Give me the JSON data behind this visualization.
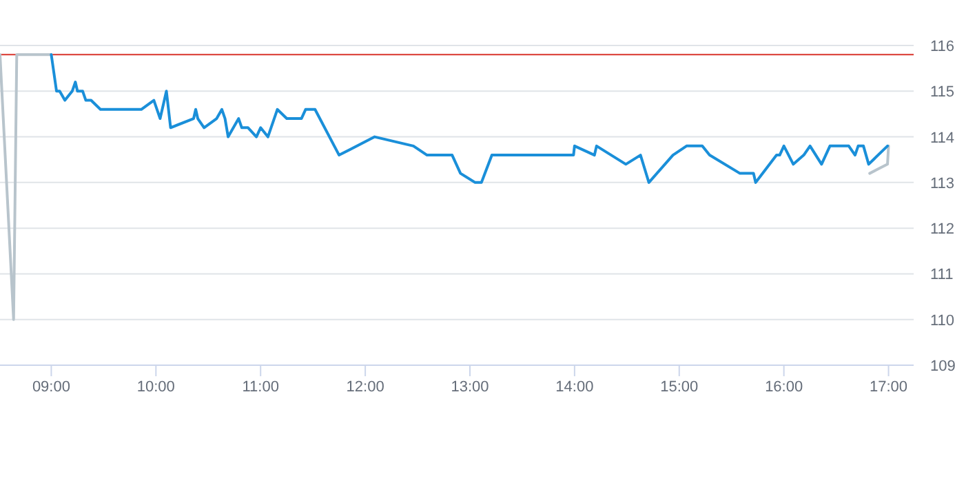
{
  "chart_data": {
    "type": "line",
    "xlim": [
      8.51,
      17.24
    ],
    "xticks": [
      {
        "value": 9,
        "label": "09:00"
      },
      {
        "value": 10,
        "label": "10:00"
      },
      {
        "value": 11,
        "label": "11:00"
      },
      {
        "value": 12,
        "label": "12:00"
      },
      {
        "value": 13,
        "label": "13:00"
      },
      {
        "value": 14,
        "label": "14:00"
      },
      {
        "value": 15,
        "label": "15:00"
      },
      {
        "value": 16,
        "label": "16:00"
      },
      {
        "value": 17,
        "label": "17:00"
      }
    ],
    "ylim": [
      109,
      116
    ],
    "yticks": [
      109,
      110,
      111,
      112,
      113,
      114,
      115,
      116
    ],
    "grid": "y",
    "marker": "none",
    "line_style": "solid",
    "ref_lines": [
      {
        "axis": "y",
        "value": 115.8,
        "color": "#d9342b"
      }
    ],
    "series": [
      {
        "color": "#b8c4cc",
        "x": [
          8.51,
          8.64,
          8.67,
          9.0
        ],
        "values": [
          115.8,
          110.0,
          115.8,
          115.8
        ]
      },
      {
        "color": "#b8c4cc",
        "x": [
          16.82,
          16.99,
          17.0
        ],
        "values": [
          113.2,
          113.4,
          113.8
        ]
      },
      {
        "color": "#1a8fd9",
        "x": [
          9.0,
          9.05,
          9.08,
          9.13,
          9.2,
          9.23,
          9.25,
          9.3,
          9.33,
          9.38,
          9.47,
          9.86,
          9.98,
          10.04,
          10.1,
          10.14,
          10.36,
          10.38,
          10.4,
          10.46,
          10.58,
          10.63,
          10.66,
          10.69,
          10.79,
          10.82,
          10.88,
          10.96,
          11.0,
          11.07,
          11.16,
          11.25,
          11.39,
          11.43,
          11.52,
          11.75,
          12.09,
          12.46,
          12.59,
          12.83,
          12.91,
          13.05,
          13.11,
          13.21,
          13.99,
          14.0,
          14.19,
          14.21,
          14.49,
          14.63,
          14.71,
          14.94,
          15.07,
          15.22,
          15.29,
          15.58,
          15.71,
          15.73,
          15.93,
          15.96,
          16.0,
          16.09,
          16.19,
          16.25,
          16.36,
          16.44,
          16.62,
          16.68,
          16.71,
          16.76,
          16.81,
          16.99
        ],
        "values": [
          115.8,
          115.0,
          115.0,
          114.8,
          115.0,
          115.2,
          115.0,
          115.0,
          114.8,
          114.8,
          114.6,
          114.6,
          114.8,
          114.4,
          115.0,
          114.2,
          114.4,
          114.6,
          114.4,
          114.2,
          114.4,
          114.6,
          114.4,
          114.0,
          114.4,
          114.2,
          114.2,
          114.0,
          114.2,
          114.0,
          114.6,
          114.4,
          114.4,
          114.6,
          114.6,
          113.6,
          114.0,
          113.8,
          113.6,
          113.6,
          113.2,
          113.0,
          113.0,
          113.6,
          113.6,
          113.8,
          113.6,
          113.8,
          113.4,
          113.6,
          113.0,
          113.6,
          113.8,
          113.8,
          113.6,
          113.2,
          113.2,
          113.0,
          113.6,
          113.6,
          113.8,
          113.4,
          113.6,
          113.8,
          113.4,
          113.8,
          113.8,
          113.6,
          113.8,
          113.8,
          113.4,
          113.8
        ]
      }
    ]
  }
}
